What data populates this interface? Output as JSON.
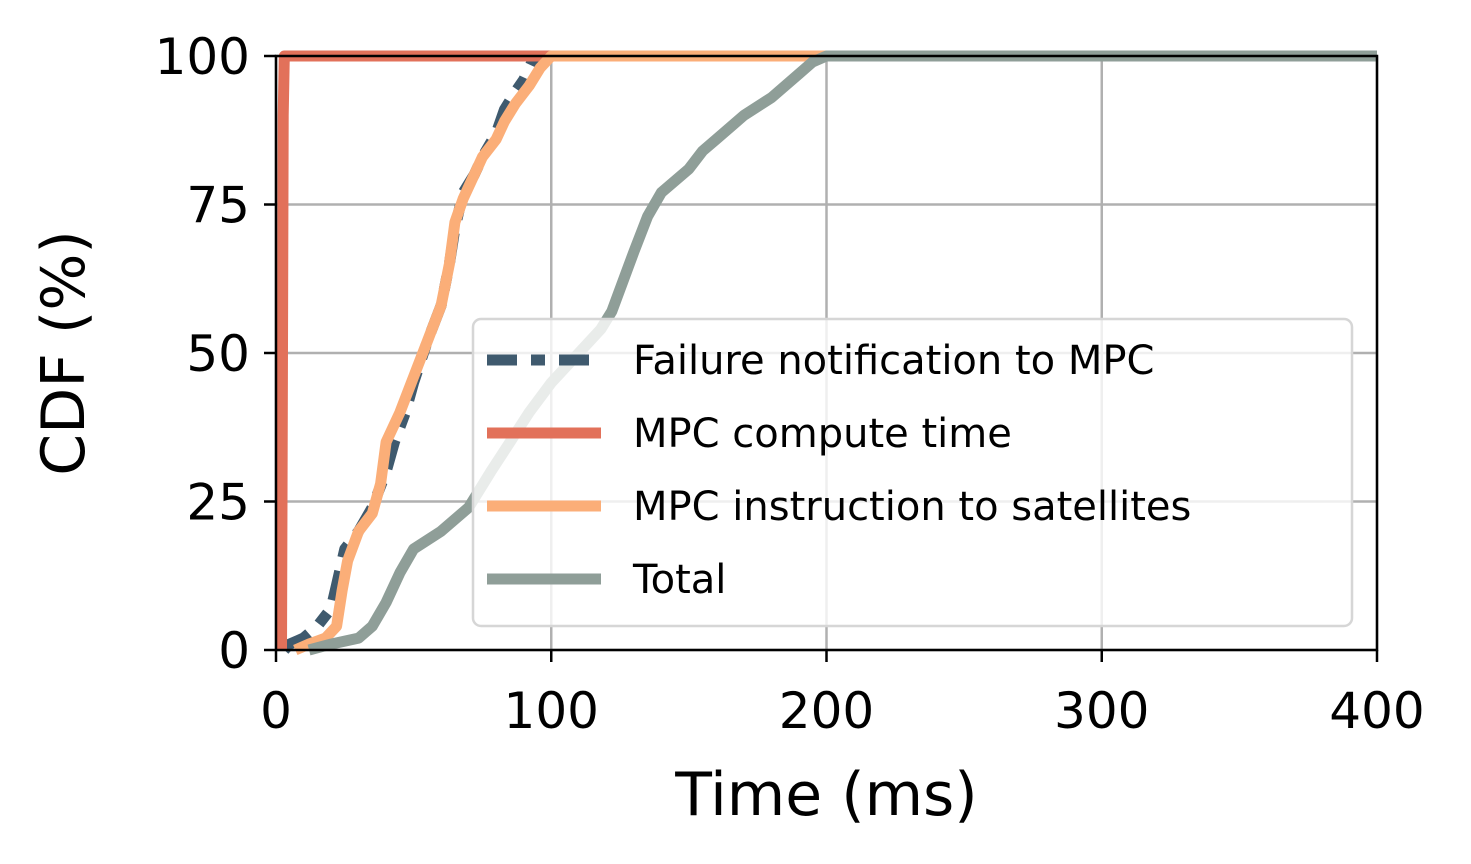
{
  "chart_data": {
    "type": "line",
    "title": "",
    "xlabel": "Time (ms)",
    "ylabel": "CDF (%)",
    "xlim": [
      0,
      400
    ],
    "ylim": [
      0,
      100
    ],
    "xticks": [
      0,
      100,
      200,
      300,
      400
    ],
    "yticks": [
      0,
      25,
      50,
      75,
      100
    ],
    "grid": true,
    "legend_position": "lower-right",
    "series": [
      {
        "name": "Failure notification to MPC",
        "color": "#3f5a6e",
        "style": "dashed",
        "points": [
          [
            3,
            0
          ],
          [
            5,
            1
          ],
          [
            10,
            2
          ],
          [
            15,
            4
          ],
          [
            20,
            7
          ],
          [
            22,
            11
          ],
          [
            25,
            17
          ],
          [
            30,
            20
          ],
          [
            35,
            24
          ],
          [
            40,
            30
          ],
          [
            43,
            35
          ],
          [
            47,
            40
          ],
          [
            50,
            45
          ],
          [
            55,
            52
          ],
          [
            60,
            58
          ],
          [
            63,
            65
          ],
          [
            65,
            71
          ],
          [
            68,
            77
          ],
          [
            72,
            80
          ],
          [
            75,
            83
          ],
          [
            80,
            87
          ],
          [
            83,
            91
          ],
          [
            87,
            94
          ],
          [
            90,
            96
          ],
          [
            93,
            99
          ],
          [
            95,
            100
          ],
          [
            400,
            100
          ]
        ]
      },
      {
        "name": "MPC compute time",
        "color": "#e2715a",
        "style": "solid",
        "points": [
          [
            2,
            0
          ],
          [
            2.3,
            40
          ],
          [
            2.6,
            90
          ],
          [
            3,
            100
          ],
          [
            400,
            100
          ]
        ]
      },
      {
        "name": "MPC instruction to satellites",
        "color": "#fbae78",
        "style": "solid",
        "points": [
          [
            7,
            0
          ],
          [
            12,
            1
          ],
          [
            18,
            2
          ],
          [
            22,
            4
          ],
          [
            24,
            10
          ],
          [
            26,
            15
          ],
          [
            30,
            20
          ],
          [
            35,
            23
          ],
          [
            38,
            28
          ],
          [
            40,
            35
          ],
          [
            45,
            40
          ],
          [
            50,
            46
          ],
          [
            55,
            52
          ],
          [
            60,
            58
          ],
          [
            63,
            65
          ],
          [
            65,
            72
          ],
          [
            68,
            76
          ],
          [
            72,
            80
          ],
          [
            75,
            83
          ],
          [
            80,
            86
          ],
          [
            83,
            89
          ],
          [
            87,
            92
          ],
          [
            92,
            95
          ],
          [
            96,
            98
          ],
          [
            100,
            100
          ],
          [
            400,
            100
          ]
        ]
      },
      {
        "name": "Total",
        "color": "#8f9e98",
        "style": "solid",
        "points": [
          [
            12,
            0
          ],
          [
            20,
            1
          ],
          [
            30,
            2
          ],
          [
            35,
            4
          ],
          [
            40,
            8
          ],
          [
            45,
            13
          ],
          [
            50,
            17
          ],
          [
            60,
            20
          ],
          [
            70,
            24
          ],
          [
            78,
            30
          ],
          [
            85,
            35
          ],
          [
            92,
            40
          ],
          [
            100,
            45
          ],
          [
            110,
            50
          ],
          [
            118,
            54
          ],
          [
            122,
            57
          ],
          [
            126,
            62
          ],
          [
            130,
            67
          ],
          [
            135,
            73
          ],
          [
            140,
            77
          ],
          [
            150,
            81
          ],
          [
            155,
            84
          ],
          [
            160,
            86
          ],
          [
            170,
            90
          ],
          [
            180,
            93
          ],
          [
            190,
            97
          ],
          [
            195,
            99
          ],
          [
            200,
            100
          ],
          [
            400,
            100
          ]
        ]
      }
    ]
  }
}
